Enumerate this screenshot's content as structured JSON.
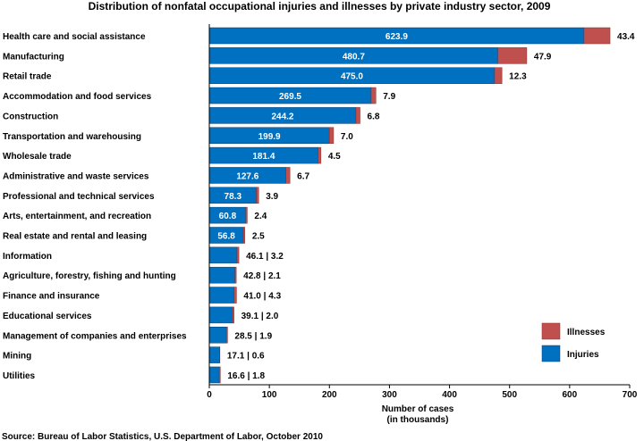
{
  "chart_data": {
    "type": "bar",
    "orientation": "horizontal",
    "stacked": true,
    "title": "Distribution of nonfatal occupational injuries and illnesses by private industry sector, 2009",
    "xlabel_line1": "Number of cases",
    "xlabel_line2": "(in thousands)",
    "xlim": [
      0,
      700
    ],
    "xticks": [
      "0",
      "100",
      "200",
      "300",
      "400",
      "500",
      "600",
      "700"
    ],
    "grid": false,
    "legend_position": "bottom-right",
    "categories": [
      "Health care and social assistance",
      "Manufacturing",
      "Retail trade",
      "Accommodation and food services",
      "Construction",
      "Transportation and warehousing",
      "Wholesale trade",
      "Administrative and waste services",
      "Professional and technical services",
      "Arts, entertainment, and recreation",
      "Real estate and rental and leasing",
      "Information",
      "Agriculture, forestry, fishing and hunting",
      "Finance and insurance",
      "Educational services",
      "Management of companies and enterprises",
      "Mining",
      "Utilities"
    ],
    "series": [
      {
        "name": "Injuries",
        "color": "#0070C0",
        "values": [
          623.9,
          480.7,
          475.0,
          269.5,
          244.2,
          199.9,
          181.4,
          127.6,
          78.3,
          60.8,
          56.8,
          46.1,
          42.8,
          41.0,
          39.1,
          28.5,
          17.1,
          16.6
        ]
      },
      {
        "name": "Illnesses",
        "color": "#C0504D",
        "values": [
          43.4,
          47.9,
          12.3,
          7.9,
          6.8,
          7.0,
          4.5,
          6.7,
          3.9,
          2.4,
          2.5,
          3.2,
          2.1,
          4.3,
          2.0,
          1.9,
          0.6,
          1.8
        ]
      }
    ],
    "injury_labels": [
      "623.9",
      "480.7",
      "475.0",
      "269.5",
      "244.2",
      "199.9",
      "181.4",
      "127.6",
      "78.3",
      "60.8",
      "56.8",
      "",
      "",
      "",
      "",
      "",
      "",
      ""
    ],
    "outside_labels": [
      "43.4",
      "47.9",
      "12.3",
      "7.9",
      "6.8",
      "7.0",
      "4.5",
      "6.7",
      "3.9",
      "2.4",
      "2.5",
      "46.1 | 3.2",
      "42.8 | 2.1",
      "41.0 | 4.3",
      "39.1 | 2.0",
      "28.5 | 1.9",
      "17.1 | 0.6",
      "16.6 | 1.8"
    ],
    "source": "Source:  Bureau of Labor Statistics, U.S. Department of Labor, October 2010"
  }
}
